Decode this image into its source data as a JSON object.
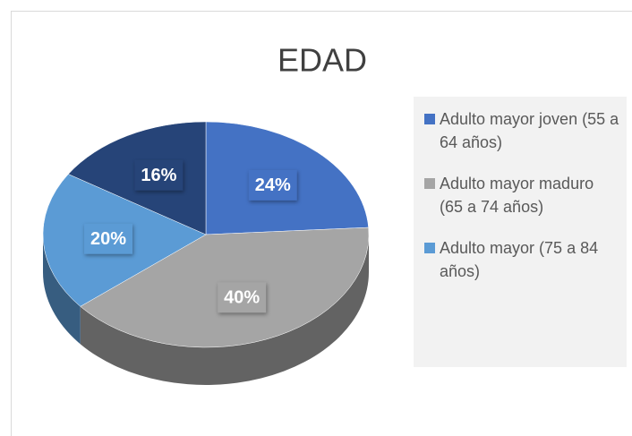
{
  "chart_data": {
    "type": "pie",
    "title": "EDAD",
    "categories": [
      "Adulto mayor joven (55 a 64 años)",
      "Adulto mayor maduro (65 a 74 años)",
      "Adulto mayor (75 a 84 años)",
      null
    ],
    "values": [
      24,
      40,
      20,
      16
    ],
    "value_labels": [
      "24%",
      "40%",
      "20%",
      "16%"
    ],
    "colors": [
      "#4472c4",
      "#a5a5a5",
      "#5b9bd5",
      "#264478"
    ],
    "legend": "right"
  }
}
